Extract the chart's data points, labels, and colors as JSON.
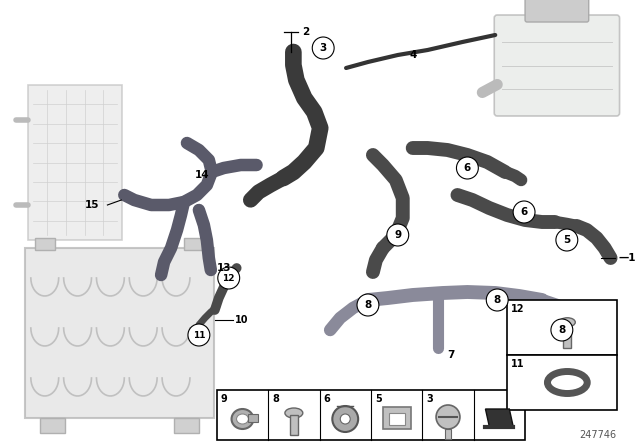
{
  "bg_color": "#ffffff",
  "part_number": "247746",
  "hose_dark": "#4a4a4a",
  "hose_mid": "#5a5a6a",
  "hose_light": "#8a8a9a",
  "fig_w": 6.4,
  "fig_h": 4.48,
  "dpi": 100
}
